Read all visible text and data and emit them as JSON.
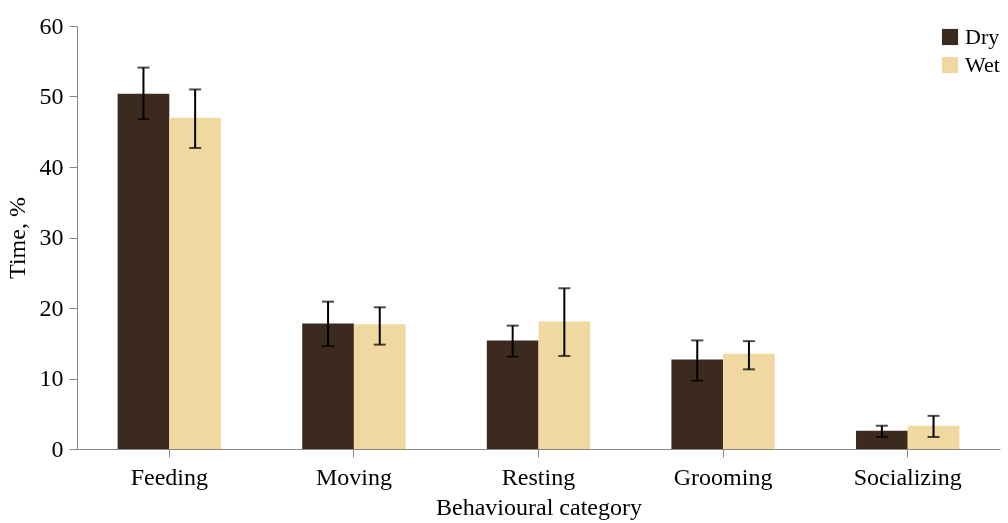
{
  "chart_data": {
    "type": "bar",
    "xlabel": "Behavioural category",
    "ylabel": "Time, %",
    "categories": [
      "Feeding",
      "Moving",
      "Resting",
      "Grooming",
      "Socializing"
    ],
    "ylim": [
      0,
      60
    ],
    "yticks": [
      0,
      10,
      20,
      30,
      40,
      50,
      60
    ],
    "grid": false,
    "legend": "top right",
    "series": [
      {
        "name": "Dry",
        "color": "#3d2a1e",
        "values": [
          50.4,
          17.8,
          15.4,
          12.7,
          2.6
        ],
        "errors": [
          [
            46.8,
            54.1
          ],
          [
            14.6,
            20.9
          ],
          [
            13.1,
            17.5
          ],
          [
            9.7,
            15.4
          ],
          [
            1.7,
            3.3
          ]
        ]
      },
      {
        "name": "Wet",
        "color": "#f0d9a0",
        "values": [
          47.0,
          17.7,
          18.1,
          13.5,
          3.3
        ],
        "errors": [
          [
            42.7,
            51.0
          ],
          [
            14.8,
            20.1
          ],
          [
            13.2,
            22.8
          ],
          [
            11.3,
            15.3
          ],
          [
            1.7,
            4.7
          ]
        ]
      }
    ]
  }
}
